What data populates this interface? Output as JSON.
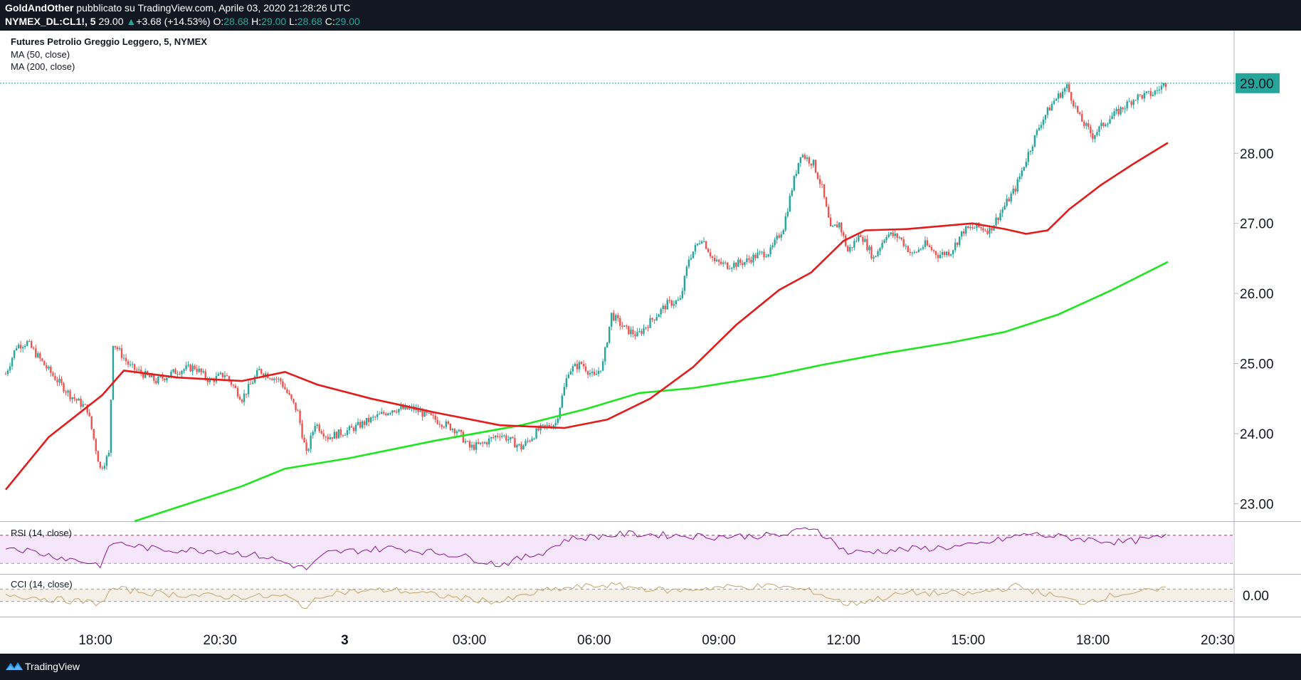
{
  "header": {
    "author": "GoldAndOther",
    "published_text": "pubblicato su TradingView.com, Aprile 03, 2020 21:28:26 UTC",
    "symbol": "NYMEX_DL:CL1!, 5",
    "last": "29.00",
    "change_arrow": "▲",
    "change": "+3.68 (+14.53%)",
    "o_label": "O:",
    "o_value": "28.68",
    "h_label": "H:",
    "h_value": "29.00",
    "l_label": "L:",
    "l_value": "28.68",
    "c_label": "C:",
    "c_value": "29.00"
  },
  "legend": {
    "title": "Futures Petrolio Greggio Leggero, 5, NYMEX",
    "ma50": "MA (50, close)",
    "ma200": "MA (200, close)"
  },
  "indicators": {
    "rsi_label": "RSI (14, close)",
    "cci_label": "CCI (14, close)"
  },
  "footer": {
    "brand": "TradingView"
  },
  "colors": {
    "up": "#26a69a",
    "down": "#ef5350",
    "ma50": "#e31b1b",
    "ma200": "#1ee61e",
    "rsi_line": "#8e1599",
    "rsi_band": "#f5e6fb",
    "cci_line": "#c5a56a",
    "cci_band": "#f5f0e7",
    "last_price_bg": "#26a69a"
  },
  "chart_data": {
    "type": "candlestick",
    "title": "Futures Petrolio Greggio Leggero, 5, NYMEX",
    "x_ticks": [
      "18:00",
      "20:30",
      "3",
      "03:00",
      "06:00",
      "09:00",
      "12:00",
      "15:00",
      "18:00",
      "20:30"
    ],
    "y_ticks": [
      "23.00",
      "24.00",
      "25.00",
      "26.00",
      "27.00",
      "28.00",
      "29.00"
    ],
    "ylim": [
      22.75,
      29.75
    ],
    "last_price_label": "29.00",
    "price_path": [
      [
        0,
        24.85
      ],
      [
        5,
        25.25
      ],
      [
        10,
        25.3
      ],
      [
        20,
        24.9
      ],
      [
        30,
        24.55
      ],
      [
        38,
        24.35
      ],
      [
        44,
        23.5
      ],
      [
        48,
        23.7
      ],
      [
        50,
        25.3
      ],
      [
        58,
        24.95
      ],
      [
        70,
        24.75
      ],
      [
        80,
        24.9
      ],
      [
        88,
        24.95
      ],
      [
        95,
        24.75
      ],
      [
        102,
        24.85
      ],
      [
        110,
        24.5
      ],
      [
        118,
        24.9
      ],
      [
        128,
        24.75
      ],
      [
        136,
        24.3
      ],
      [
        140,
        23.7
      ],
      [
        144,
        24.15
      ],
      [
        150,
        23.95
      ],
      [
        160,
        24.05
      ],
      [
        170,
        24.2
      ],
      [
        180,
        24.35
      ],
      [
        190,
        24.35
      ],
      [
        200,
        24.2
      ],
      [
        210,
        24.05
      ],
      [
        216,
        23.8
      ],
      [
        222,
        23.85
      ],
      [
        230,
        24.0
      ],
      [
        240,
        23.8
      ],
      [
        248,
        24.05
      ],
      [
        256,
        24.15
      ],
      [
        262,
        24.9
      ],
      [
        268,
        25.0
      ],
      [
        274,
        24.8
      ],
      [
        278,
        25.0
      ],
      [
        282,
        25.7
      ],
      [
        288,
        25.5
      ],
      [
        294,
        25.4
      ],
      [
        300,
        25.6
      ],
      [
        308,
        25.85
      ],
      [
        314,
        25.9
      ],
      [
        318,
        26.5
      ],
      [
        324,
        26.8
      ],
      [
        330,
        26.45
      ],
      [
        336,
        26.4
      ],
      [
        344,
        26.45
      ],
      [
        350,
        26.55
      ],
      [
        356,
        26.6
      ],
      [
        362,
        26.95
      ],
      [
        366,
        27.5
      ],
      [
        370,
        28.0
      ],
      [
        376,
        27.85
      ],
      [
        380,
        27.5
      ],
      [
        384,
        26.9
      ],
      [
        388,
        27.0
      ],
      [
        392,
        26.6
      ],
      [
        398,
        26.85
      ],
      [
        404,
        26.5
      ],
      [
        410,
        26.85
      ],
      [
        416,
        26.8
      ],
      [
        422,
        26.55
      ],
      [
        428,
        26.7
      ],
      [
        434,
        26.55
      ],
      [
        440,
        26.6
      ],
      [
        446,
        26.9
      ],
      [
        452,
        26.95
      ],
      [
        458,
        26.9
      ],
      [
        464,
        27.2
      ],
      [
        470,
        27.5
      ],
      [
        476,
        28.0
      ],
      [
        482,
        28.45
      ],
      [
        488,
        28.75
      ],
      [
        494,
        28.95
      ],
      [
        500,
        28.5
      ],
      [
        506,
        28.25
      ],
      [
        512,
        28.45
      ],
      [
        518,
        28.6
      ],
      [
        526,
        28.8
      ],
      [
        534,
        28.85
      ],
      [
        540,
        29.0
      ]
    ],
    "candle_count": 541,
    "ma50": [
      [
        0,
        23.2
      ],
      [
        20,
        23.95
      ],
      [
        45,
        24.55
      ],
      [
        55,
        24.9
      ],
      [
        80,
        24.8
      ],
      [
        110,
        24.75
      ],
      [
        130,
        24.88
      ],
      [
        145,
        24.7
      ],
      [
        170,
        24.5
      ],
      [
        200,
        24.3
      ],
      [
        230,
        24.12
      ],
      [
        260,
        24.08
      ],
      [
        280,
        24.2
      ],
      [
        300,
        24.5
      ],
      [
        320,
        24.95
      ],
      [
        340,
        25.55
      ],
      [
        360,
        26.05
      ],
      [
        375,
        26.3
      ],
      [
        390,
        26.75
      ],
      [
        400,
        26.9
      ],
      [
        420,
        26.92
      ],
      [
        450,
        27.0
      ],
      [
        465,
        26.92
      ],
      [
        475,
        26.85
      ],
      [
        485,
        26.9
      ],
      [
        495,
        27.2
      ],
      [
        510,
        27.55
      ],
      [
        525,
        27.85
      ],
      [
        541,
        28.15
      ]
    ],
    "ma200": [
      [
        60,
        22.75
      ],
      [
        110,
        23.25
      ],
      [
        130,
        23.5
      ],
      [
        160,
        23.65
      ],
      [
        200,
        23.9
      ],
      [
        240,
        24.12
      ],
      [
        270,
        24.35
      ],
      [
        295,
        24.58
      ],
      [
        320,
        24.65
      ],
      [
        355,
        24.82
      ],
      [
        380,
        24.98
      ],
      [
        410,
        25.15
      ],
      [
        440,
        25.3
      ],
      [
        465,
        25.45
      ],
      [
        490,
        25.7
      ],
      [
        515,
        26.05
      ],
      [
        541,
        26.45
      ]
    ],
    "rsi": {
      "levels": [
        70,
        30
      ],
      "ylim": [
        15,
        90
      ],
      "points": [
        [
          0,
          55
        ],
        [
          20,
          42
        ],
        [
          44,
          28
        ],
        [
          50,
          60
        ],
        [
          70,
          50
        ],
        [
          100,
          48
        ],
        [
          120,
          40
        ],
        [
          140,
          22
        ],
        [
          150,
          45
        ],
        [
          180,
          52
        ],
        [
          210,
          42
        ],
        [
          230,
          28
        ],
        [
          250,
          46
        ],
        [
          262,
          65
        ],
        [
          290,
          72
        ],
        [
          330,
          68
        ],
        [
          362,
          70
        ],
        [
          376,
          82
        ],
        [
          392,
          45
        ],
        [
          420,
          50
        ],
        [
          450,
          55
        ],
        [
          476,
          72
        ],
        [
          500,
          65
        ],
        [
          520,
          60
        ],
        [
          541,
          68
        ]
      ]
    },
    "cci": {
      "levels": [
        100,
        -100
      ],
      "ylim": [
        -350,
        350
      ],
      "y_label": "0.00",
      "points": [
        [
          0,
          20
        ],
        [
          20,
          -60
        ],
        [
          44,
          -130
        ],
        [
          50,
          110
        ],
        [
          70,
          30
        ],
        [
          100,
          -20
        ],
        [
          130,
          -20
        ],
        [
          140,
          -190
        ],
        [
          150,
          40
        ],
        [
          180,
          90
        ],
        [
          210,
          -40
        ],
        [
          230,
          -110
        ],
        [
          250,
          70
        ],
        [
          262,
          120
        ],
        [
          280,
          170
        ],
        [
          310,
          70
        ],
        [
          330,
          130
        ],
        [
          360,
          150
        ],
        [
          376,
          60
        ],
        [
          392,
          -150
        ],
        [
          420,
          40
        ],
        [
          450,
          20
        ],
        [
          470,
          150
        ],
        [
          500,
          -120
        ],
        [
          520,
          30
        ],
        [
          541,
          90
        ]
      ]
    }
  }
}
